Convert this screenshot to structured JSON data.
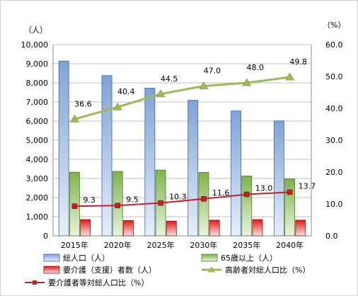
{
  "chart_data": {
    "type": "bar",
    "categories": [
      "2015年",
      "2020年",
      "2025年",
      "2030年",
      "2035年",
      "2040年"
    ],
    "y_left": {
      "unit_label": "（人）",
      "min": 0,
      "max": 10000,
      "step": 1000,
      "tick_labels": [
        "0",
        "1,000",
        "2,000",
        "3,000",
        "4,000",
        "5,000",
        "6,000",
        "7,000",
        "8,000",
        "9,000",
        "10,000"
      ]
    },
    "y_right": {
      "unit_label": "（%）",
      "min": 0,
      "max": 60,
      "step": 10,
      "tick_labels": [
        "0.0",
        "10.0",
        "20.0",
        "30.0",
        "40.0",
        "50.0",
        "60.0"
      ]
    },
    "grid": true,
    "legend_position": "bottom",
    "series": [
      {
        "name": "総人口（人）",
        "kind": "bar",
        "axis": "left",
        "color": "#a7c1e4",
        "edge": "#3b63a8",
        "values": [
          9140,
          8380,
          7720,
          7090,
          6530,
          6010
        ]
      },
      {
        "name": "65歳以上（人）",
        "kind": "bar",
        "axis": "left",
        "color": "#8fbf5a",
        "edge": "#4e7a2a",
        "values": [
          3330,
          3370,
          3440,
          3320,
          3130,
          2970
        ]
      },
      {
        "name": "要介護（支援）者数（人）",
        "kind": "bar",
        "axis": "left",
        "color": "#e02020",
        "edge": "#9a1010",
        "values": [
          850,
          800,
          770,
          820,
          850,
          820
        ]
      },
      {
        "name": "高齢者対総人口比（%）",
        "kind": "line",
        "axis": "right",
        "color": "#9bbb59",
        "marker": "triangle",
        "values": [
          36.6,
          40.4,
          44.5,
          47.0,
          48.0,
          49.8
        ],
        "labels": [
          "36.6",
          "40.4",
          "44.5",
          "47.0",
          "48.0",
          "49.8"
        ]
      },
      {
        "name": "要介護者等対総人口比（%）",
        "kind": "line",
        "axis": "right",
        "color": "#c0202a",
        "marker": "square",
        "values": [
          9.3,
          9.5,
          10.3,
          11.6,
          13.0,
          13.7
        ],
        "labels": [
          "9.3",
          "9.5",
          "10.3",
          "11.6",
          "13.0",
          "13.7"
        ]
      }
    ]
  }
}
